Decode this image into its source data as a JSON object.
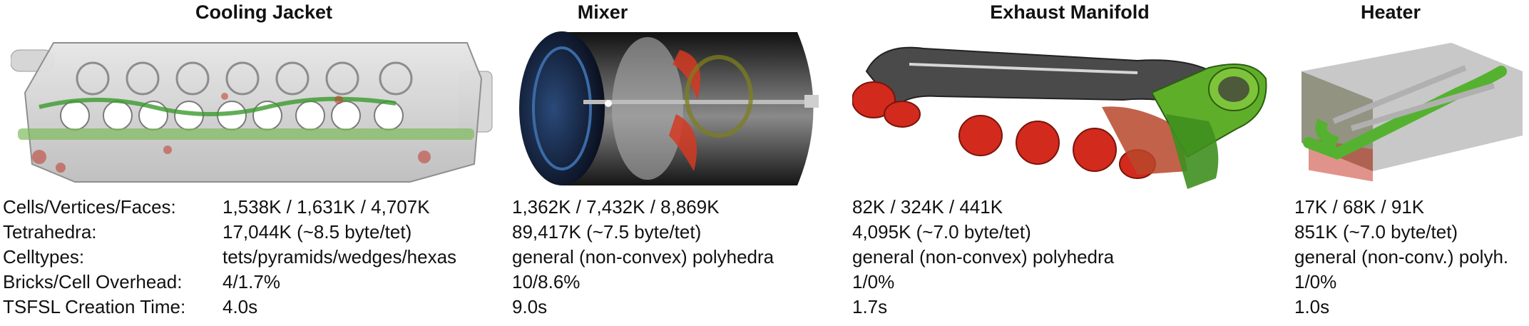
{
  "models": [
    {
      "title": "Cooling Jacket",
      "cells_vertices_faces": "1,538K / 1,631K / 4,707K",
      "tetrahedra": "17,044K (~8.5 byte/tet)",
      "celltypes": "tets/pyramids/wedges/hexas",
      "bricks_cell_overhead": "4/1.7%",
      "tsfsl_creation_time": "4.0s"
    },
    {
      "title": "Mixer",
      "cells_vertices_faces": "1,362K / 7,432K / 8,869K",
      "tetrahedra": "89,417K  (~7.5 byte/tet)",
      "celltypes": "general (non-convex) polyhedra",
      "bricks_cell_overhead": "10/8.6%",
      "tsfsl_creation_time": "9.0s"
    },
    {
      "title": "Exhaust Manifold",
      "cells_vertices_faces": "82K / 324K / 441K",
      "tetrahedra": "4,095K  (~7.0 byte/tet)",
      "celltypes": "general (non-convex) polyhedra",
      "bricks_cell_overhead": "1/0%",
      "tsfsl_creation_time": "1.7s"
    },
    {
      "title": "Heater",
      "cells_vertices_faces": "17K / 68K / 91K",
      "tetrahedra": "851K  (~7.0 byte/tet)",
      "celltypes": "general (non-conv.) polyh.",
      "bricks_cell_overhead": "1/0%",
      "tsfsl_creation_time": "1.0s"
    }
  ],
  "row_labels": {
    "cells_vertices_faces": "Cells/Vertices/Faces:",
    "tetrahedra": "Tetrahedra:",
    "celltypes": "Celltypes:",
    "bricks_cell_overhead": "Bricks/Cell Overhead:",
    "tsfsl_creation_time": "TSFSL Creation Time:"
  }
}
